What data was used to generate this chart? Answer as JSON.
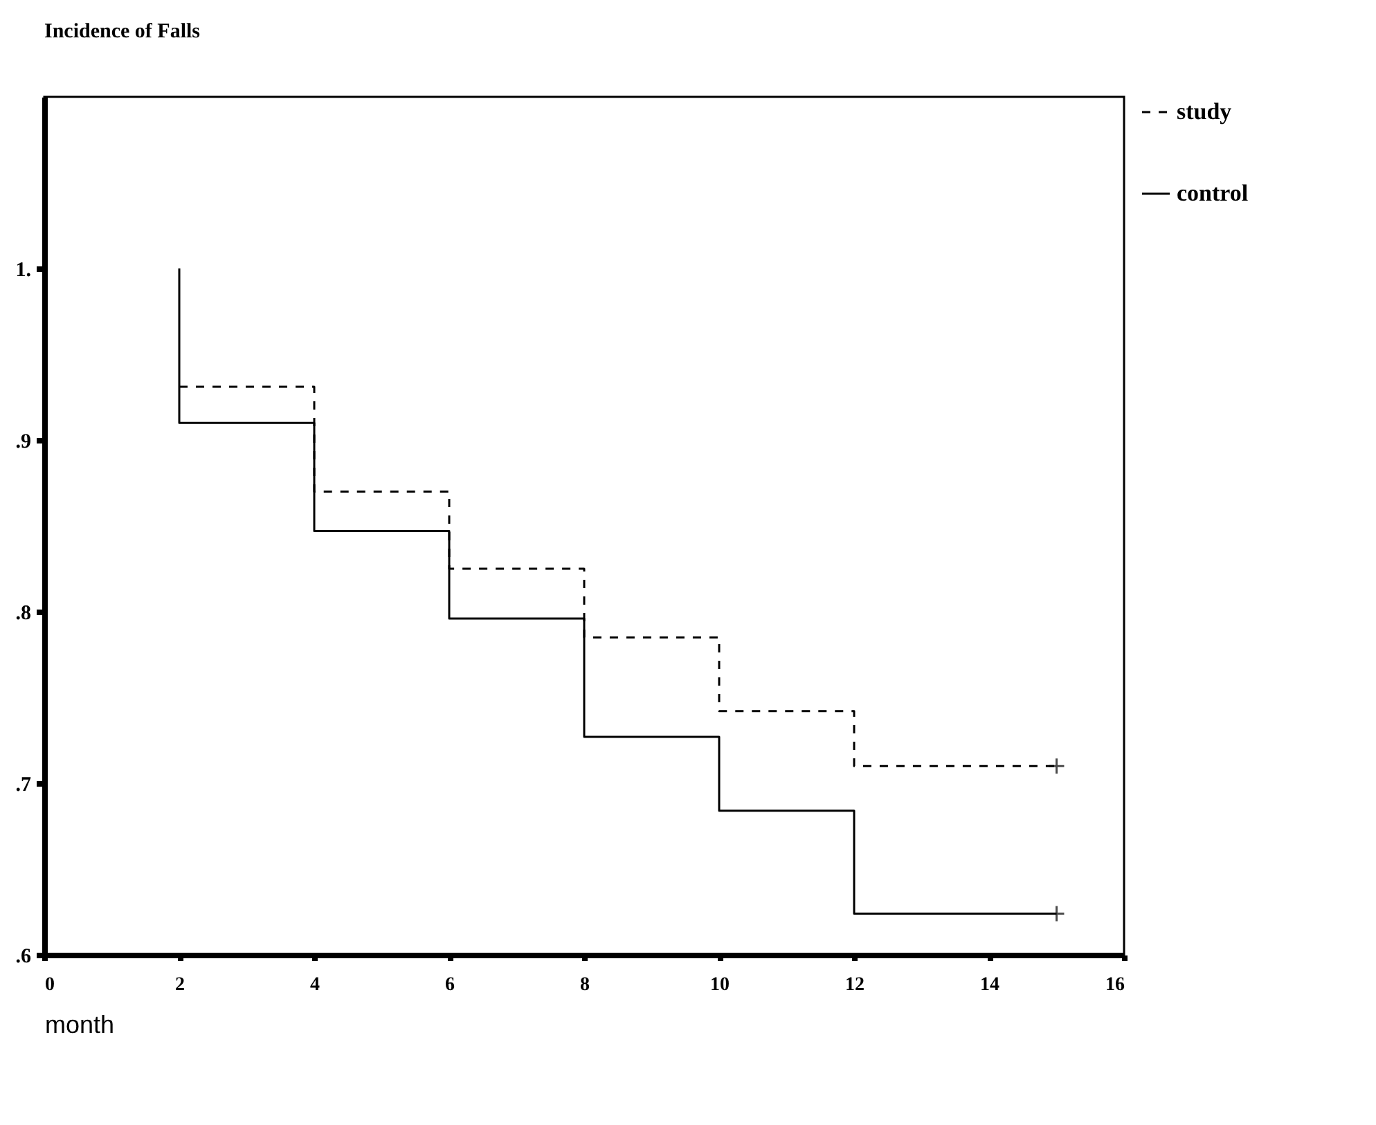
{
  "chart_data": {
    "type": "step",
    "title": "Incidence of Falls",
    "xlabel": "month",
    "xlim": [
      0,
      16
    ],
    "xticks": [
      0,
      2,
      4,
      6,
      8,
      10,
      12,
      14,
      16
    ],
    "ylim": [
      0.6,
      1.1
    ],
    "yticks": [
      {
        "value": 0.6,
        "label": ".6"
      },
      {
        "value": 0.7,
        "label": ".7"
      },
      {
        "value": 0.8,
        "label": ".8"
      },
      {
        "value": 0.9,
        "label": ".9"
      },
      {
        "value": 1.0,
        "label": "1."
      }
    ],
    "grid": false,
    "legend": "right",
    "series": [
      {
        "name": "study",
        "color": "#000000",
        "line_style": "dashed",
        "x": [
          2,
          4,
          6,
          8,
          10,
          12,
          15
        ],
        "values": [
          0.931,
          0.87,
          0.825,
          0.785,
          0.742,
          0.71,
          0.71
        ]
      },
      {
        "name": "control",
        "color": "#000000",
        "line_style": "solid",
        "x": [
          2,
          2,
          4,
          6,
          8,
          10,
          12,
          15
        ],
        "values": [
          1.0,
          0.91,
          0.847,
          0.796,
          0.727,
          0.684,
          0.624,
          0.624
        ]
      },
      {
        "type": "scatter",
        "marker": "cross",
        "color": "#000000",
        "x": [
          15
        ],
        "values": [
          0.71
        ]
      },
      {
        "type": "scatter",
        "marker": "cross",
        "color": "#000000",
        "x": [
          15
        ],
        "values": [
          0.624
        ]
      }
    ]
  }
}
